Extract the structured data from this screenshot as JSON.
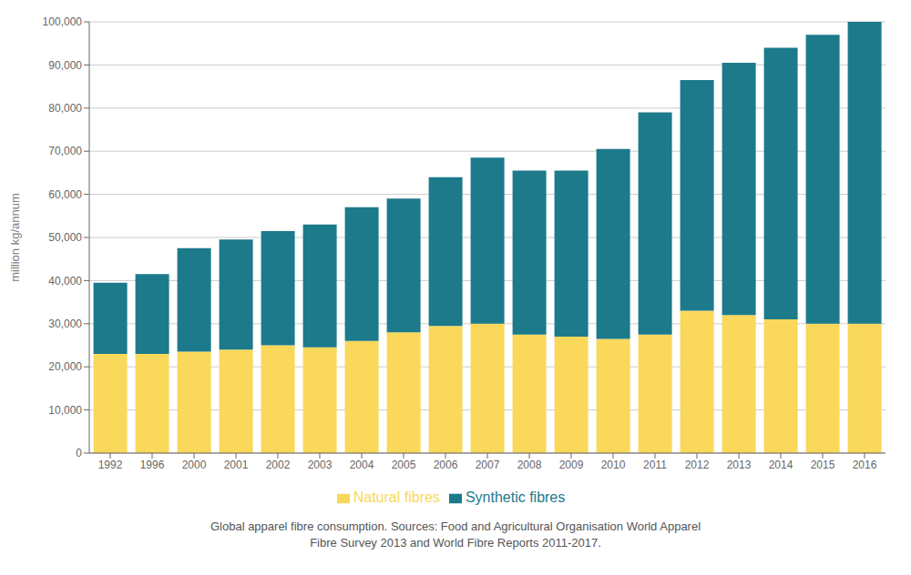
{
  "chart_data": {
    "type": "bar",
    "stacked": true,
    "ylabel": "million kg/annum",
    "categories": [
      "1992",
      "1996",
      "2000",
      "2001",
      "2002",
      "2003",
      "2004",
      "2005",
      "2006",
      "2007",
      "2008",
      "2009",
      "2010",
      "2011",
      "2012",
      "2013",
      "2014",
      "2015",
      "2016"
    ],
    "series": [
      {
        "name": "Natural fibres",
        "color": "#F9D85B",
        "values": [
          23000,
          23000,
          23500,
          24000,
          25000,
          24500,
          26000,
          28000,
          29500,
          30000,
          27500,
          27000,
          26500,
          27500,
          33000,
          32000,
          31000,
          30000,
          30000
        ]
      },
      {
        "name": "Synthetic fibres",
        "color": "#1C7A8B",
        "values": [
          16500,
          18500,
          24000,
          25500,
          26500,
          28500,
          31000,
          31000,
          34500,
          38500,
          38000,
          38500,
          44000,
          51500,
          53500,
          58500,
          63000,
          67000,
          70000
        ]
      }
    ],
    "ylim": [
      0,
      100000
    ],
    "yticks": [
      0,
      {
        "value": 10000,
        "label": "10,000"
      },
      {
        "value": 20000,
        "label": "20,000"
      },
      {
        "value": 30000,
        "label": "30,000"
      },
      {
        "value": 40000,
        "label": "40,000"
      },
      {
        "value": 50000,
        "label": "50,000"
      },
      {
        "value": 60000,
        "label": "60,000"
      },
      {
        "value": 70000,
        "label": "70,000"
      },
      {
        "value": 80000,
        "label": "80,000"
      },
      {
        "value": 90000,
        "label": "90,000"
      },
      {
        "value": 100000,
        "label": "100,000"
      }
    ],
    "grid": true,
    "legend": "bottom",
    "caption": [
      "Global apparel fibre consumption. Sources: Food and Agricultural Organisation World Apparel",
      "Fibre Survey 2013 and World Fibre Reports 2011-2017."
    ]
  }
}
